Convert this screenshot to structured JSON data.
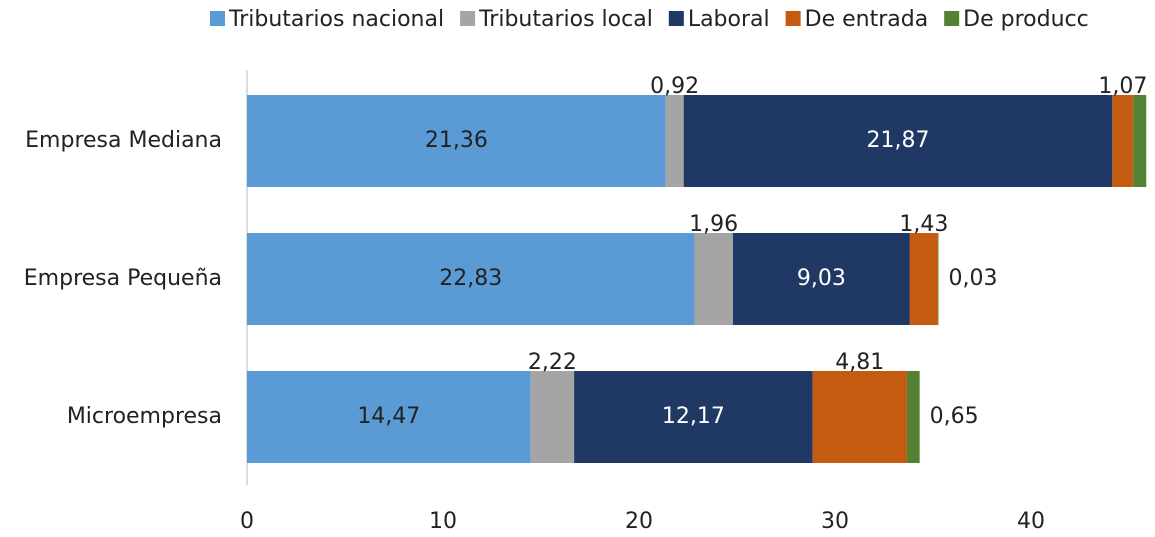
{
  "chart_data": {
    "type": "stacked-barh",
    "categories": [
      "Empresa Mediana",
      "Empresa Pequeña",
      "Microempresa"
    ],
    "series": [
      {
        "name": "Tributarios nacional",
        "color": "#5b9bd5",
        "values": [
          21.36,
          22.83,
          14.47
        ],
        "value_labels": [
          "21,36",
          "22,83",
          "14,47"
        ]
      },
      {
        "name": "Tributarios local",
        "color": "#a5a5a5",
        "values": [
          0.92,
          1.96,
          2.22
        ],
        "value_labels": [
          "0,92",
          "1,96",
          "2,22"
        ]
      },
      {
        "name": "Laboral",
        "color": "#203864",
        "values": [
          21.87,
          9.03,
          12.17
        ],
        "value_labels": [
          "21,87",
          "9,03",
          "12,17"
        ]
      },
      {
        "name": "De entrada",
        "color": "#c55a11",
        "values": [
          1.07,
          1.43,
          4.81
        ],
        "value_labels": [
          "1,07",
          "1,43",
          "4,81"
        ]
      },
      {
        "name": "De producc",
        "color": "#548235",
        "values": [
          0.66,
          0.03,
          0.65
        ],
        "value_labels": [
          null,
          "0,03",
          "0,65"
        ]
      }
    ],
    "xlim": [
      0,
      46
    ],
    "xticks": [
      0,
      10,
      20,
      30,
      40
    ]
  }
}
